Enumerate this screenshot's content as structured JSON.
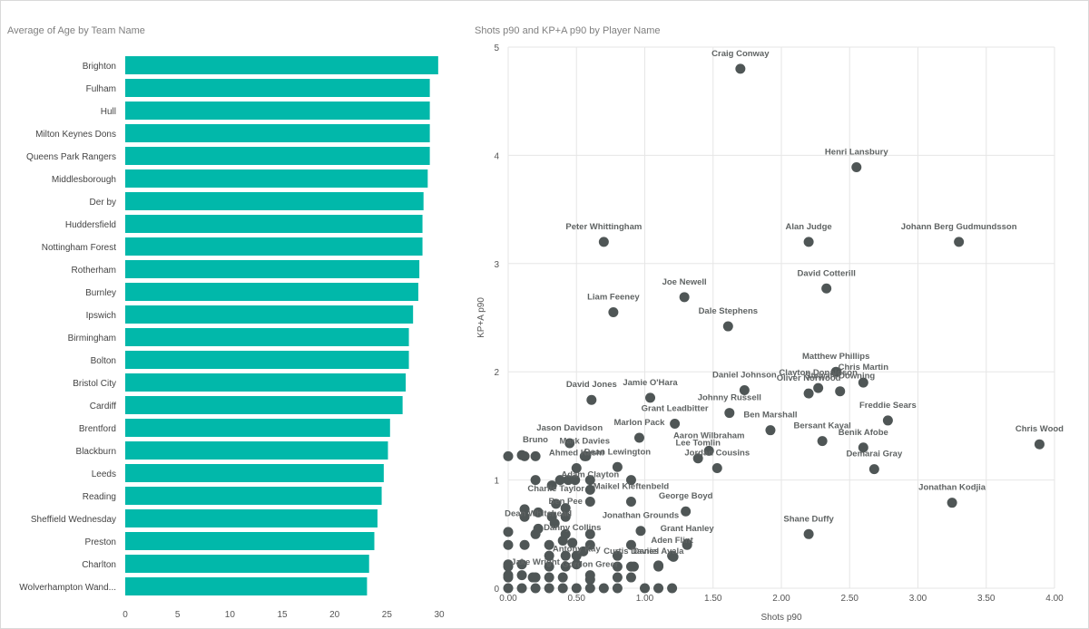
{
  "chart_data": [
    {
      "type": "bar",
      "orientation": "horizontal",
      "title": "Average of Age by Team Name",
      "xlabel": "",
      "ylabel": "",
      "xlim": [
        0,
        30
      ],
      "xticks": [
        "0",
        "5",
        "10",
        "15",
        "20",
        "25",
        "30"
      ],
      "grid": false,
      "bar_color": "#01B8AA",
      "categories": [
        "Brighton",
        "Fulham",
        "Hull",
        "Milton Keynes Dons",
        "Queens Park Rangers",
        "Middlesborough",
        "Der by",
        "Huddersfield",
        "Nottingham Forest",
        "Rotherham",
        "Burnley",
        "Ipswich",
        "Birmingham",
        "Bolton",
        "Bristol City",
        "Cardiff",
        "Brentford",
        "Blackburn",
        "Leeds",
        "Reading",
        "Sheffield Wednesday",
        "Preston",
        "Charlton",
        "Wolverhampton Wand..."
      ],
      "values": [
        29.9,
        29.1,
        29.1,
        29.1,
        29.1,
        28.9,
        28.5,
        28.4,
        28.4,
        28.1,
        28.0,
        27.5,
        27.1,
        27.1,
        26.8,
        26.5,
        25.3,
        25.1,
        24.7,
        24.5,
        24.1,
        23.8,
        23.3,
        23.1
      ]
    },
    {
      "type": "scatter",
      "title": "Shots p90 and KP+A p90 by Player Name",
      "xlabel": "Shots p90",
      "ylabel": "KP+A p90",
      "xlim": [
        0,
        4
      ],
      "ylim": [
        0,
        5
      ],
      "xticks": [
        "0.00",
        "0.50",
        "1.00",
        "1.50",
        "2.00",
        "2.50",
        "3.00",
        "3.50",
        "4.00"
      ],
      "yticks": [
        "0",
        "1",
        "2",
        "3",
        "4",
        "5"
      ],
      "grid": true,
      "point_color": "#4F5656",
      "labeled_points": [
        {
          "x": 1.7,
          "y": 4.8,
          "label": "Craig Conway"
        },
        {
          "x": 2.55,
          "y": 3.89,
          "label": "Henri Lansbury"
        },
        {
          "x": 0.7,
          "y": 3.2,
          "label": "Peter Whittingham"
        },
        {
          "x": 2.2,
          "y": 3.2,
          "label": "Alan Judge"
        },
        {
          "x": 3.3,
          "y": 3.2,
          "label": "Johann Berg Gudmundsson"
        },
        {
          "x": 2.33,
          "y": 2.77,
          "label": "David Cotterill"
        },
        {
          "x": 1.29,
          "y": 2.69,
          "label": "Joe Newell"
        },
        {
          "x": 0.77,
          "y": 2.55,
          "label": "Liam Feeney"
        },
        {
          "x": 1.61,
          "y": 2.42,
          "label": "Dale Stephens"
        },
        {
          "x": 2.4,
          "y": 2.0,
          "label": "Matthew Phillips"
        },
        {
          "x": 2.6,
          "y": 1.9,
          "label": "Chris Martin"
        },
        {
          "x": 1.73,
          "y": 1.83,
          "label": "Daniel Johnson"
        },
        {
          "x": 2.43,
          "y": 1.82,
          "label": "Stewart Downing"
        },
        {
          "x": 0.61,
          "y": 1.74,
          "label": "David Jones"
        },
        {
          "x": 1.04,
          "y": 1.76,
          "label": "Jamie O'Hara"
        },
        {
          "x": 2.2,
          "y": 1.8,
          "label": "Oliver Norwood"
        },
        {
          "x": 2.27,
          "y": 1.85,
          "label": "Clayton Donaldson"
        },
        {
          "x": 1.22,
          "y": 1.52,
          "label": "Grant Leadbitter"
        },
        {
          "x": 1.62,
          "y": 1.62,
          "label": "Johnny Russell"
        },
        {
          "x": 2.78,
          "y": 1.55,
          "label": "Freddie Sears"
        },
        {
          "x": 0.96,
          "y": 1.39,
          "label": "Marlon Pack"
        },
        {
          "x": 1.92,
          "y": 1.46,
          "label": "Ben Marshall"
        },
        {
          "x": 0.45,
          "y": 1.34,
          "label": "Jason Davidson"
        },
        {
          "x": 1.47,
          "y": 1.27,
          "label": "Aaron Wilbraham"
        },
        {
          "x": 2.3,
          "y": 1.36,
          "label": "Bersant Kayal"
        },
        {
          "x": 3.89,
          "y": 1.33,
          "label": "Chris Wood"
        },
        {
          "x": 0.56,
          "y": 1.22,
          "label": "Mark Davies"
        },
        {
          "x": 1.39,
          "y": 1.2,
          "label": "Lee Tomlin"
        },
        {
          "x": 2.6,
          "y": 1.3,
          "label": "Benik Afobe"
        },
        {
          "x": 0.1,
          "y": 1.23,
          "label": "Bruno"
        },
        {
          "x": 0.8,
          "y": 1.12,
          "label": "Dean Lewington"
        },
        {
          "x": 2.68,
          "y": 1.1,
          "label": "Demarai Gray"
        },
        {
          "x": 0.5,
          "y": 1.11,
          "label": "Ahmed Kashi"
        },
        {
          "x": 1.53,
          "y": 1.11,
          "label": "Jordan Cousins"
        },
        {
          "x": 0.6,
          "y": 0.91,
          "label": "Adam Clayton"
        },
        {
          "x": 3.25,
          "y": 0.79,
          "label": "Jonathan Kodjia"
        },
        {
          "x": 0.35,
          "y": 0.78,
          "label": "Charlie Taylor"
        },
        {
          "x": 1.3,
          "y": 0.71,
          "label": "George Boyd"
        },
        {
          "x": 0.42,
          "y": 0.66,
          "label": "Ben Pee"
        },
        {
          "x": 0.9,
          "y": 0.8,
          "label": "Maikel Kieftenbeld"
        },
        {
          "x": 0.22,
          "y": 0.55,
          "label": "Dean Whitehead"
        },
        {
          "x": 2.2,
          "y": 0.5,
          "label": "Shane Duffy"
        },
        {
          "x": 0.97,
          "y": 0.53,
          "label": "Jonathan Grounds"
        },
        {
          "x": 0.47,
          "y": 0.42,
          "label": "Danny Collins"
        },
        {
          "x": 1.31,
          "y": 0.41,
          "label": "Grant Hanley"
        },
        {
          "x": 1.2,
          "y": 0.3,
          "label": "Aden Flint"
        },
        {
          "x": 0.5,
          "y": 0.22,
          "label": "Antony Kay"
        },
        {
          "x": 0.9,
          "y": 0.2,
          "label": "Curtis Davies"
        },
        {
          "x": 1.1,
          "y": 0.2,
          "label": "Daniel Ayala"
        },
        {
          "x": 0.18,
          "y": 0.1,
          "label": "Jake Wright"
        },
        {
          "x": 0.6,
          "y": 0.08,
          "label": "Gordon Greer"
        }
      ],
      "points": [
        [
          0,
          1.22
        ],
        [
          0.12,
          1.22
        ],
        [
          0.2,
          1.22
        ],
        [
          0.57,
          1.22
        ],
        [
          0.44,
          1.0
        ],
        [
          0.49,
          1.0
        ],
        [
          0.6,
          1.0
        ],
        [
          0.2,
          1.0
        ],
        [
          0.32,
          0.95
        ],
        [
          0.38,
          1.0
        ],
        [
          0.9,
          1.0
        ],
        [
          0.12,
          0.73
        ],
        [
          0.12,
          0.66
        ],
        [
          0.22,
          0.7
        ],
        [
          0.42,
          0.74
        ],
        [
          0.6,
          0.8
        ],
        [
          0.32,
          0.66
        ],
        [
          0.34,
          0.6
        ],
        [
          0,
          0.52
        ],
        [
          0.2,
          0.5
        ],
        [
          0.42,
          0.5
        ],
        [
          0.6,
          0.5
        ],
        [
          0.4,
          0.44
        ],
        [
          0,
          0.4
        ],
        [
          0.12,
          0.4
        ],
        [
          0.3,
          0.4
        ],
        [
          0.6,
          0.4
        ],
        [
          0.9,
          0.4
        ],
        [
          1.31,
          0.4
        ],
        [
          0.3,
          0.3
        ],
        [
          0.42,
          0.3
        ],
        [
          0.5,
          0.3
        ],
        [
          0.55,
          0.34
        ],
        [
          0.8,
          0.3
        ],
        [
          1.21,
          0.29
        ],
        [
          0,
          0.22
        ],
        [
          0,
          0.2
        ],
        [
          0.1,
          0.22
        ],
        [
          0.3,
          0.2
        ],
        [
          0.42,
          0.2
        ],
        [
          0.8,
          0.2
        ],
        [
          0.92,
          0.2
        ],
        [
          1.1,
          0.21
        ],
        [
          0,
          0.12
        ],
        [
          0,
          0.1
        ],
        [
          0.1,
          0.12
        ],
        [
          0.2,
          0.1
        ],
        [
          0.3,
          0.1
        ],
        [
          0.4,
          0.1
        ],
        [
          0.6,
          0.12
        ],
        [
          0.8,
          0.1
        ],
        [
          0.9,
          0.1
        ],
        [
          0,
          0
        ],
        [
          0.1,
          0
        ],
        [
          0.2,
          0
        ],
        [
          0.3,
          0
        ],
        [
          0.4,
          0
        ],
        [
          0.5,
          0
        ],
        [
          0.6,
          0
        ],
        [
          0.7,
          0
        ],
        [
          0.8,
          0
        ],
        [
          1.0,
          0
        ],
        [
          1.1,
          0
        ],
        [
          1.2,
          0
        ]
      ]
    }
  ]
}
